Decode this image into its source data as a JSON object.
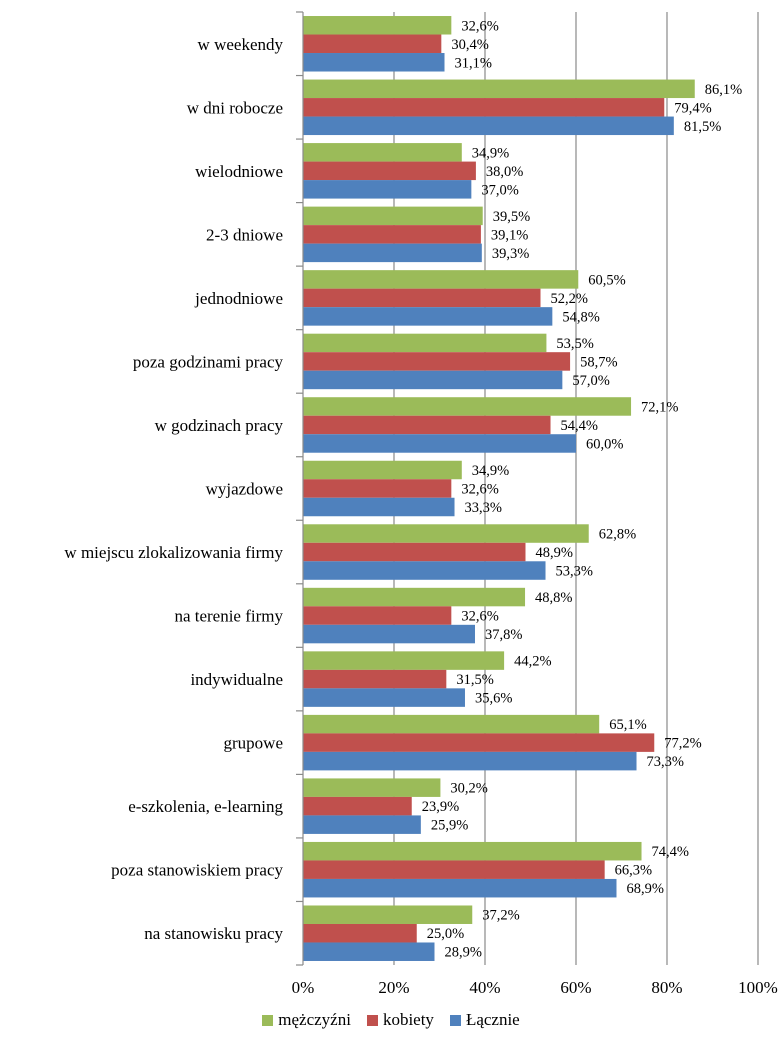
{
  "chart_data": {
    "type": "bar",
    "orientation": "horizontal",
    "categories": [
      "w weekendy",
      "w dni robocze",
      "wielodniowe",
      "2-3 dniowe",
      "jednodniowe",
      "poza godzinami pracy",
      "w godzinach pracy",
      "wyjazdowe",
      "w miejscu zlokalizowania firmy",
      "na terenie firmy",
      "indywidualne",
      "grupowe",
      "e-szkolenia, e-learning",
      "poza stanowiskiem pracy",
      "na stanowisku pracy"
    ],
    "series": [
      {
        "name": "mężczyźni",
        "color": "#9bbb59",
        "values": [
          32.6,
          86.1,
          34.9,
          39.5,
          60.5,
          53.5,
          72.1,
          34.9,
          62.8,
          48.8,
          44.2,
          65.1,
          30.2,
          74.4,
          37.2
        ],
        "labels": [
          "32,6%",
          "86,1%",
          "34,9%",
          "39,5%",
          "60,5%",
          "53,5%",
          "72,1%",
          "34,9%",
          "62,8%",
          "48,8%",
          "44,2%",
          "65,1%",
          "30,2%",
          "74,4%",
          "37,2%"
        ]
      },
      {
        "name": "kobiety",
        "color": "#c0504d",
        "values": [
          30.4,
          79.4,
          38.0,
          39.1,
          52.2,
          58.7,
          54.4,
          32.6,
          48.9,
          32.6,
          31.5,
          77.2,
          23.9,
          66.3,
          25.0
        ],
        "labels": [
          "30,4%",
          "79,4%",
          "38,0%",
          "39,1%",
          "52,2%",
          "58,7%",
          "54,4%",
          "32,6%",
          "48,9%",
          "32,6%",
          "31,5%",
          "77,2%",
          "23,9%",
          "66,3%",
          "25,0%"
        ]
      },
      {
        "name": "Łącznie",
        "color": "#4f81bd",
        "values": [
          31.1,
          81.5,
          37.0,
          39.3,
          54.8,
          57.0,
          60.0,
          33.3,
          53.3,
          37.8,
          35.6,
          73.3,
          25.9,
          68.9,
          28.9
        ],
        "labels": [
          "31,1%",
          "81,5%",
          "37,0%",
          "39,3%",
          "54,8%",
          "57,0%",
          "60,0%",
          "33,3%",
          "53,3%",
          "37,8%",
          "35,6%",
          "73,3%",
          "25,9%",
          "68,9%",
          "28,9%"
        ]
      }
    ],
    "xlim": [
      0,
      100
    ],
    "xticks": [
      "0%",
      "20%",
      "40%",
      "60%",
      "80%",
      "100%"
    ],
    "grid": "vertical",
    "legend": "bottom"
  }
}
